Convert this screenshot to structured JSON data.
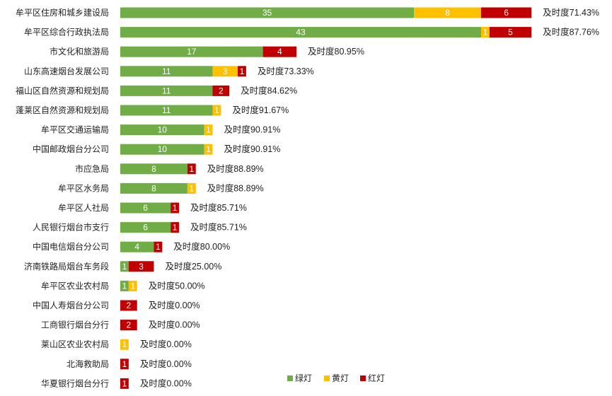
{
  "chart_data": {
    "type": "bar",
    "orientation": "horizontal",
    "stacked": true,
    "grid": false,
    "legend_position": "bottom-right",
    "categories": [
      "牟平区住房和城乡建设局",
      "牟平区综合行政执法局",
      "市文化和旅游局",
      "山东高速烟台发展公司",
      "福山区自然资源和规划局",
      "蓬莱区自然资源和规划局",
      "牟平区交通运输局",
      "中国邮政烟台分公司",
      "市应急局",
      "牟平区水务局",
      "牟平区人社局",
      "人民银行烟台市支行",
      "中国电信烟台分公司",
      "济南铁路局烟台车务段",
      "牟平区农业农村局",
      "中国人寿烟台分公司",
      "工商银行烟台分行",
      "莱山区农业农村局",
      "北海救助局",
      "华夏银行烟台分行"
    ],
    "series": [
      {
        "name": "绿灯",
        "color": "#70AD47",
        "values": [
          35,
          43,
          17,
          11,
          11,
          11,
          10,
          10,
          8,
          8,
          6,
          6,
          4,
          1,
          1,
          0,
          0,
          0,
          0,
          0
        ]
      },
      {
        "name": "黄灯",
        "color": "#FFC000",
        "values": [
          8,
          1,
          0,
          3,
          0,
          1,
          1,
          1,
          0,
          1,
          0,
          0,
          0,
          0,
          1,
          0,
          0,
          1,
          0,
          0
        ]
      },
      {
        "name": "红灯",
        "color": "#C00000",
        "values": [
          6,
          5,
          4,
          1,
          2,
          0,
          0,
          0,
          1,
          0,
          1,
          1,
          1,
          3,
          0,
          2,
          2,
          0,
          1,
          1
        ]
      }
    ],
    "rate_labels": [
      "及时度71.43%",
      "及时度87.76%",
      "及时度80.95%",
      "及时度73.33%",
      "及时度84.62%",
      "及时度91.67%",
      "及时度90.91%",
      "及时度90.91%",
      "及时度88.89%",
      "及时度88.89%",
      "及时度85.71%",
      "及时度85.71%",
      "及时度80.00%",
      "及时度25.00%",
      "及时度50.00%",
      "及时度0.00%",
      "及时度0.00%",
      "及时度0.00%",
      "及时度0.00%",
      "及时度0.00%"
    ]
  }
}
